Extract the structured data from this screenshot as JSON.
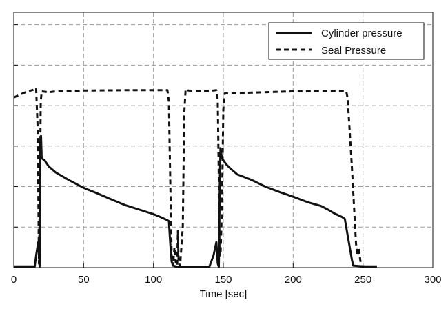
{
  "chart_data": {
    "type": "line",
    "xlabel": "Time [sec]",
    "ylabel": "",
    "xlim": [
      0,
      300
    ],
    "ylim": [
      0,
      6.3
    ],
    "x_ticks": [
      0,
      50,
      100,
      150,
      200,
      250,
      300
    ],
    "x_tick_labels": [
      "0",
      "50",
      "100",
      "150",
      "200",
      "250",
      "300"
    ],
    "y_ticks": [
      0,
      1,
      2,
      3,
      4,
      5,
      6
    ],
    "grid": true,
    "legend": {
      "position": "top-right"
    },
    "series": [
      {
        "name": "Cylinder pressure",
        "style": "solid",
        "points": [
          [
            0,
            0.03
          ],
          [
            15,
            0.03
          ],
          [
            16,
            0.3
          ],
          [
            17.5,
            0.63
          ],
          [
            18.5,
            0.03
          ],
          [
            19,
            3.1
          ],
          [
            19.5,
            3.25
          ],
          [
            20,
            2.7
          ],
          [
            22,
            2.65
          ],
          [
            25,
            2.5
          ],
          [
            30,
            2.35
          ],
          [
            40,
            2.15
          ],
          [
            50,
            1.97
          ],
          [
            60,
            1.83
          ],
          [
            70,
            1.68
          ],
          [
            80,
            1.54
          ],
          [
            90,
            1.43
          ],
          [
            100,
            1.32
          ],
          [
            105,
            1.25
          ],
          [
            110,
            1.17
          ],
          [
            111,
            1.15
          ],
          [
            112,
            0.6
          ],
          [
            113,
            0.15
          ],
          [
            114,
            0.05
          ],
          [
            117,
            0.02
          ],
          [
            125,
            0.02
          ],
          [
            140,
            0.02
          ],
          [
            143,
            0.3
          ],
          [
            145,
            0.63
          ],
          [
            146,
            0.1
          ],
          [
            146.8,
            0.02
          ],
          [
            147.5,
            2.1
          ],
          [
            148,
            2.95
          ],
          [
            149,
            2.7
          ],
          [
            152,
            2.55
          ],
          [
            155,
            2.45
          ],
          [
            160,
            2.3
          ],
          [
            170,
            2.17
          ],
          [
            180,
            2.0
          ],
          [
            190,
            1.87
          ],
          [
            200,
            1.75
          ],
          [
            210,
            1.62
          ],
          [
            220,
            1.52
          ],
          [
            225,
            1.43
          ],
          [
            230,
            1.33
          ],
          [
            235,
            1.25
          ],
          [
            237,
            1.2
          ],
          [
            240,
            0.6
          ],
          [
            242,
            0.2
          ],
          [
            243,
            0.05
          ],
          [
            250,
            0.03
          ],
          [
            260,
            0.03
          ]
        ]
      },
      {
        "name": "Seal Pressure",
        "style": "dashed",
        "points": [
          [
            0,
            4.2
          ],
          [
            5,
            4.28
          ],
          [
            10,
            4.35
          ],
          [
            14,
            4.39
          ],
          [
            15,
            4.43
          ],
          [
            16,
            4.43
          ],
          [
            17,
            3.5
          ],
          [
            17.5,
            2.0
          ],
          [
            18,
            0.1
          ],
          [
            18.7,
            2.0
          ],
          [
            19.3,
            4.1
          ],
          [
            20,
            4.35
          ],
          [
            25,
            4.33
          ],
          [
            30,
            4.35
          ],
          [
            50,
            4.37
          ],
          [
            80,
            4.38
          ],
          [
            100,
            4.38
          ],
          [
            110,
            4.38
          ],
          [
            111,
            4.1
          ],
          [
            112.5,
            1.2
          ],
          [
            113,
            0.3
          ],
          [
            114,
            0.05
          ],
          [
            115,
            0.5
          ],
          [
            116,
            0.1
          ],
          [
            117,
            0.05
          ],
          [
            117.5,
            0.9
          ],
          [
            118,
            0.15
          ],
          [
            119,
            0.03
          ],
          [
            121,
            1.0
          ],
          [
            122,
            3.8
          ],
          [
            123,
            4.4
          ],
          [
            125,
            4.37
          ],
          [
            130,
            4.36
          ],
          [
            140,
            4.36
          ],
          [
            145,
            4.38
          ],
          [
            146,
            4.15
          ],
          [
            146.8,
            2.2
          ],
          [
            147.3,
            0.3
          ],
          [
            148,
            0.3
          ],
          [
            149,
            1.5
          ],
          [
            150,
            3.9
          ],
          [
            151,
            4.3
          ],
          [
            155,
            4.3
          ],
          [
            170,
            4.32
          ],
          [
            200,
            4.35
          ],
          [
            230,
            4.36
          ],
          [
            238,
            4.36
          ],
          [
            239,
            4.18
          ],
          [
            242,
            2.5
          ],
          [
            245,
            0.6
          ],
          [
            246,
            0.3
          ],
          [
            247,
            0.5
          ],
          [
            248,
            0.2
          ],
          [
            249,
            0.02
          ],
          [
            250,
            0.03
          ],
          [
            252,
            0.03
          ]
        ]
      }
    ]
  }
}
